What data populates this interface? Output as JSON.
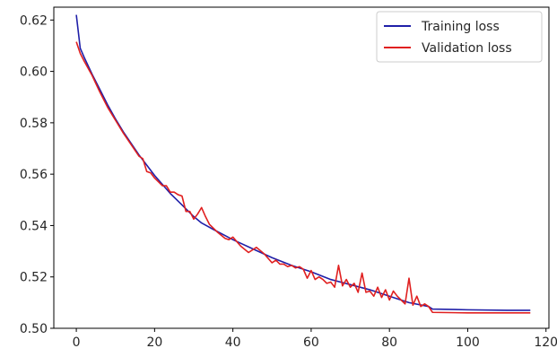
{
  "chart_data": {
    "type": "line",
    "title": "",
    "xlabel": "",
    "ylabel": "",
    "xlim": [
      -5.75,
      120.75
    ],
    "ylim": [
      0.5,
      0.625
    ],
    "xticks": [
      0,
      20,
      40,
      60,
      80,
      100,
      120
    ],
    "yticks": [
      0.5,
      0.52,
      0.54,
      0.56,
      0.58,
      0.6,
      0.62
    ],
    "xtick_labels": [
      "0",
      "20",
      "40",
      "60",
      "80",
      "100",
      "120"
    ],
    "ytick_labels": [
      "0.50",
      "0.52",
      "0.54",
      "0.56",
      "0.58",
      "0.60",
      "0.62"
    ],
    "grid": false,
    "legend": {
      "placement": "top-right",
      "entries": [
        "Training loss",
        "Validation loss"
      ]
    },
    "series": [
      {
        "name": "Training loss",
        "color": "#1f1fa8",
        "points": [
          [
            0,
            0.622
          ],
          [
            1,
            0.609
          ],
          [
            2,
            0.6055
          ],
          [
            4,
            0.599
          ],
          [
            6,
            0.593
          ],
          [
            8,
            0.587
          ],
          [
            10,
            0.5815
          ],
          [
            12,
            0.5765
          ],
          [
            14,
            0.572
          ],
          [
            16,
            0.5675
          ],
          [
            18,
            0.5635
          ],
          [
            20,
            0.5595
          ],
          [
            22,
            0.556
          ],
          [
            24,
            0.5525
          ],
          [
            26,
            0.5495
          ],
          [
            28,
            0.5465
          ],
          [
            30,
            0.5435
          ],
          [
            32,
            0.541
          ],
          [
            35,
            0.5385
          ],
          [
            40,
            0.5345
          ],
          [
            45,
            0.531
          ],
          [
            50,
            0.5275
          ],
          [
            55,
            0.5245
          ],
          [
            60,
            0.522
          ],
          [
            65,
            0.519
          ],
          [
            70,
            0.517
          ],
          [
            75,
            0.515
          ],
          [
            80,
            0.5125
          ],
          [
            85,
            0.51
          ],
          [
            90,
            0.5085
          ],
          [
            91,
            0.5075
          ],
          [
            100,
            0.5072
          ],
          [
            110,
            0.507
          ],
          [
            116,
            0.507
          ]
        ]
      },
      {
        "name": "Validation loss",
        "color": "#e02020",
        "points": [
          [
            0,
            0.6115
          ],
          [
            1,
            0.607
          ],
          [
            2,
            0.604
          ],
          [
            4,
            0.5985
          ],
          [
            6,
            0.592
          ],
          [
            8,
            0.586
          ],
          [
            10,
            0.581
          ],
          [
            12,
            0.576
          ],
          [
            14,
            0.5715
          ],
          [
            16,
            0.567
          ],
          [
            17,
            0.566
          ],
          [
            18,
            0.561
          ],
          [
            19,
            0.5605
          ],
          [
            20,
            0.5585
          ],
          [
            22,
            0.5555
          ],
          [
            23,
            0.5555
          ],
          [
            24,
            0.553
          ],
          [
            25,
            0.553
          ],
          [
            26,
            0.552
          ],
          [
            27,
            0.5515
          ],
          [
            28,
            0.5455
          ],
          [
            29,
            0.5455
          ],
          [
            30,
            0.5425
          ],
          [
            31,
            0.5445
          ],
          [
            32,
            0.547
          ],
          [
            33,
            0.5435
          ],
          [
            34,
            0.5405
          ],
          [
            36,
            0.5375
          ],
          [
            38,
            0.535
          ],
          [
            39,
            0.5345
          ],
          [
            40,
            0.5355
          ],
          [
            42,
            0.532
          ],
          [
            44,
            0.5295
          ],
          [
            46,
            0.5315
          ],
          [
            48,
            0.529
          ],
          [
            50,
            0.5255
          ],
          [
            51,
            0.5265
          ],
          [
            52,
            0.525
          ],
          [
            53,
            0.525
          ],
          [
            54,
            0.524
          ],
          [
            55,
            0.5245
          ],
          [
            56,
            0.5235
          ],
          [
            57,
            0.524
          ],
          [
            58,
            0.523
          ],
          [
            59,
            0.5195
          ],
          [
            60,
            0.5225
          ],
          [
            61,
            0.519
          ],
          [
            62,
            0.52
          ],
          [
            63,
            0.519
          ],
          [
            64,
            0.5175
          ],
          [
            65,
            0.518
          ],
          [
            66,
            0.516
          ],
          [
            67,
            0.5245
          ],
          [
            68,
            0.5165
          ],
          [
            69,
            0.519
          ],
          [
            70,
            0.516
          ],
          [
            71,
            0.5175
          ],
          [
            72,
            0.514
          ],
          [
            73,
            0.5215
          ],
          [
            74,
            0.514
          ],
          [
            75,
            0.5145
          ],
          [
            76,
            0.5125
          ],
          [
            77,
            0.516
          ],
          [
            78,
            0.512
          ],
          [
            79,
            0.515
          ],
          [
            80,
            0.511
          ],
          [
            81,
            0.5145
          ],
          [
            82,
            0.5125
          ],
          [
            83,
            0.511
          ],
          [
            84,
            0.5095
          ],
          [
            85,
            0.5195
          ],
          [
            86,
            0.509
          ],
          [
            87,
            0.5125
          ],
          [
            88,
            0.5085
          ],
          [
            89,
            0.5095
          ],
          [
            90,
            0.5085
          ],
          [
            91,
            0.5062
          ],
          [
            100,
            0.506
          ],
          [
            110,
            0.506
          ],
          [
            116,
            0.506
          ]
        ]
      }
    ]
  }
}
